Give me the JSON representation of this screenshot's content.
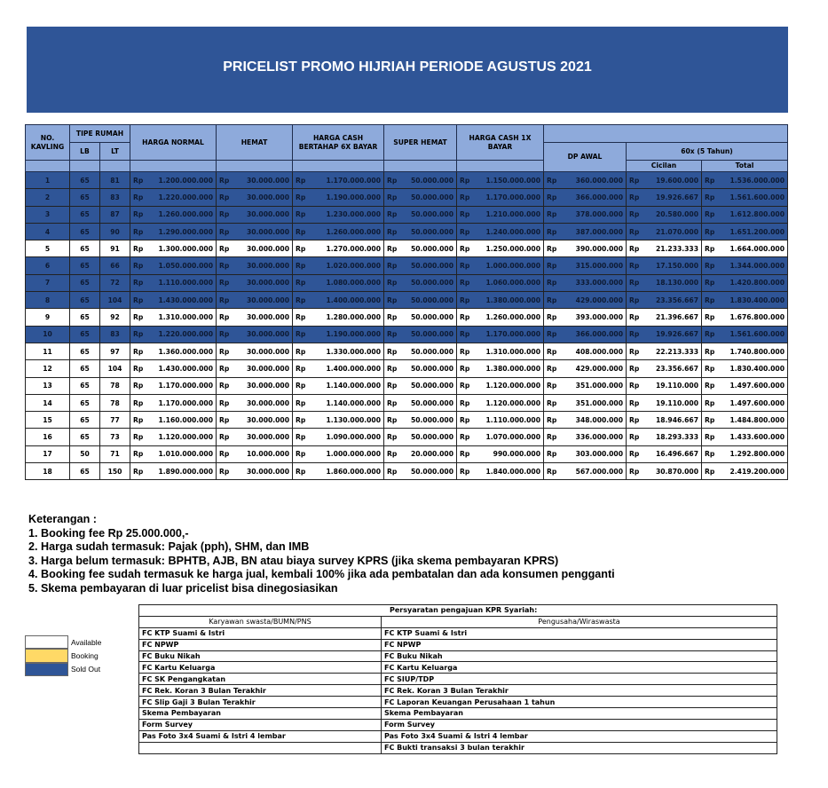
{
  "title": "PRICELIST PROMO HIJRIAH PERIODE AGUSTUS 2021",
  "colors": {
    "header": "#8eaadb",
    "banner": "#2f5597",
    "sold_out": "#2f5597",
    "booking": "#ffd966",
    "available": "#ffffff"
  },
  "table": {
    "headers": {
      "no": "NO. KAVLING",
      "tipe": "TIPE RUMAH",
      "lb": "LB",
      "lt": "LT",
      "harga_normal": "HARGA NORMAL",
      "hemat": "HEMAT",
      "cash6": "HARGA CASH BERTAHAP 6X BAYAR",
      "super_hemat": "SUPER HEMAT",
      "cash1": "HARGA CASH 1X BAYAR",
      "dp": "DP AWAL",
      "tenor": "60x (5 Tahun)",
      "cicilan": "Cicilan",
      "total": "Total"
    },
    "currency": "Rp",
    "rows": [
      {
        "no": "1",
        "lb": "65",
        "lt": "81",
        "normal": "1.200.000.000",
        "hemat": "30.000.000",
        "cash6": "1.170.000.000",
        "super": "50.000.000",
        "cash1": "1.150.000.000",
        "dp": "360.000.000",
        "cicilan": "19.600.000",
        "total": "1.536.000.000",
        "status": "Sold Out"
      },
      {
        "no": "2",
        "lb": "65",
        "lt": "83",
        "normal": "1.220.000.000",
        "hemat": "30.000.000",
        "cash6": "1.190.000.000",
        "super": "50.000.000",
        "cash1": "1.170.000.000",
        "dp": "366.000.000",
        "cicilan": "19.926.667",
        "total": "1.561.600.000",
        "status": "Sold Out"
      },
      {
        "no": "3",
        "lb": "65",
        "lt": "87",
        "normal": "1.260.000.000",
        "hemat": "30.000.000",
        "cash6": "1.230.000.000",
        "super": "50.000.000",
        "cash1": "1.210.000.000",
        "dp": "378.000.000",
        "cicilan": "20.580.000",
        "total": "1.612.800.000",
        "status": "Sold Out"
      },
      {
        "no": "4",
        "lb": "65",
        "lt": "90",
        "normal": "1.290.000.000",
        "hemat": "30.000.000",
        "cash6": "1.260.000.000",
        "super": "50.000.000",
        "cash1": "1.240.000.000",
        "dp": "387.000.000",
        "cicilan": "21.070.000",
        "total": "1.651.200.000",
        "status": "Sold Out"
      },
      {
        "no": "5",
        "lb": "65",
        "lt": "91",
        "normal": "1.300.000.000",
        "hemat": "30.000.000",
        "cash6": "1.270.000.000",
        "super": "50.000.000",
        "cash1": "1.250.000.000",
        "dp": "390.000.000",
        "cicilan": "21.233.333",
        "total": "1.664.000.000",
        "status": "Available"
      },
      {
        "no": "6",
        "lb": "65",
        "lt": "66",
        "normal": "1.050.000.000",
        "hemat": "30.000.000",
        "cash6": "1.020.000.000",
        "super": "50.000.000",
        "cash1": "1.000.000.000",
        "dp": "315.000.000",
        "cicilan": "17.150.000",
        "total": "1.344.000.000",
        "status": "Sold Out"
      },
      {
        "no": "7",
        "lb": "65",
        "lt": "72",
        "normal": "1.110.000.000",
        "hemat": "30.000.000",
        "cash6": "1.080.000.000",
        "super": "50.000.000",
        "cash1": "1.060.000.000",
        "dp": "333.000.000",
        "cicilan": "18.130.000",
        "total": "1.420.800.000",
        "status": "Sold Out"
      },
      {
        "no": "8",
        "lb": "65",
        "lt": "104",
        "normal": "1.430.000.000",
        "hemat": "30.000.000",
        "cash6": "1.400.000.000",
        "super": "50.000.000",
        "cash1": "1.380.000.000",
        "dp": "429.000.000",
        "cicilan": "23.356.667",
        "total": "1.830.400.000",
        "status": "Sold Out"
      },
      {
        "no": "9",
        "lb": "65",
        "lt": "92",
        "normal": "1.310.000.000",
        "hemat": "30.000.000",
        "cash6": "1.280.000.000",
        "super": "50.000.000",
        "cash1": "1.260.000.000",
        "dp": "393.000.000",
        "cicilan": "21.396.667",
        "total": "1.676.800.000",
        "status": "Available"
      },
      {
        "no": "10",
        "lb": "65",
        "lt": "83",
        "normal": "1.220.000.000",
        "hemat": "30.000.000",
        "cash6": "1.190.000.000",
        "super": "50.000.000",
        "cash1": "1.170.000.000",
        "dp": "366.000.000",
        "cicilan": "19.926.667",
        "total": "1.561.600.000",
        "status": "Sold Out"
      },
      {
        "no": "11",
        "lb": "65",
        "lt": "97",
        "normal": "1.360.000.000",
        "hemat": "30.000.000",
        "cash6": "1.330.000.000",
        "super": "50.000.000",
        "cash1": "1.310.000.000",
        "dp": "408.000.000",
        "cicilan": "22.213.333",
        "total": "1.740.800.000",
        "status": "Available"
      },
      {
        "no": "12",
        "lb": "65",
        "lt": "104",
        "normal": "1.430.000.000",
        "hemat": "30.000.000",
        "cash6": "1.400.000.000",
        "super": "50.000.000",
        "cash1": "1.380.000.000",
        "dp": "429.000.000",
        "cicilan": "23.356.667",
        "total": "1.830.400.000",
        "status": "Available"
      },
      {
        "no": "13",
        "lb": "65",
        "lt": "78",
        "normal": "1.170.000.000",
        "hemat": "30.000.000",
        "cash6": "1.140.000.000",
        "super": "50.000.000",
        "cash1": "1.120.000.000",
        "dp": "351.000.000",
        "cicilan": "19.110.000",
        "total": "1.497.600.000",
        "status": "Available"
      },
      {
        "no": "14",
        "lb": "65",
        "lt": "78",
        "normal": "1.170.000.000",
        "hemat": "30.000.000",
        "cash6": "1.140.000.000",
        "super": "50.000.000",
        "cash1": "1.120.000.000",
        "dp": "351.000.000",
        "cicilan": "19.110.000",
        "total": "1.497.600.000",
        "status": "Available"
      },
      {
        "no": "15",
        "lb": "65",
        "lt": "77",
        "normal": "1.160.000.000",
        "hemat": "30.000.000",
        "cash6": "1.130.000.000",
        "super": "50.000.000",
        "cash1": "1.110.000.000",
        "dp": "348.000.000",
        "cicilan": "18.946.667",
        "total": "1.484.800.000",
        "status": "Available"
      },
      {
        "no": "16",
        "lb": "65",
        "lt": "73",
        "normal": "1.120.000.000",
        "hemat": "30.000.000",
        "cash6": "1.090.000.000",
        "super": "50.000.000",
        "cash1": "1.070.000.000",
        "dp": "336.000.000",
        "cicilan": "18.293.333",
        "total": "1.433.600.000",
        "status": "Available"
      },
      {
        "no": "17",
        "lb": "50",
        "lt": "71",
        "normal": "1.010.000.000",
        "hemat": "10.000.000",
        "cash6": "1.000.000.000",
        "super": "20.000.000",
        "cash1": "990.000.000",
        "dp": "303.000.000",
        "cicilan": "16.496.667",
        "total": "1.292.800.000",
        "status": "Available"
      },
      {
        "no": "18",
        "lb": "65",
        "lt": "150",
        "normal": "1.890.000.000",
        "hemat": "30.000.000",
        "cash6": "1.860.000.000",
        "super": "50.000.000",
        "cash1": "1.840.000.000",
        "dp": "567.000.000",
        "cicilan": "30.870.000",
        "total": "2.419.200.000",
        "status": "Available"
      }
    ]
  },
  "notes": {
    "heading": "Keterangan :",
    "items": [
      "1. Booking fee Rp 25.000.000,-",
      "2. Harga sudah termasuk: Pajak (pph), SHM, dan IMB",
      "3. Harga belum termasuk: BPHTB, AJB, BN atau biaya survey KPRS (jika skema pembayaran KPRS)",
      "4. Booking fee sudah termasuk ke harga jual, kembali 100% jika ada pembatalan dan ada konsumen pengganti",
      "5. Skema pembayaran di luar pricelist bisa dinegosiasikan"
    ]
  },
  "legend": [
    {
      "label": "Available",
      "color": "#ffffff"
    },
    {
      "label": "Booking",
      "color": "#ffd966"
    },
    {
      "label": "Sold Out",
      "color": "#2f5597"
    }
  ],
  "requirements": {
    "title": "Persyaratan pengajuan KPR Syariah:",
    "col1": "Karyawan swasta/BUMN/PNS",
    "col2": "Pengusaha/Wiraswasta",
    "rows": [
      [
        "FC KTP Suami & Istri",
        "FC KTP Suami & Istri"
      ],
      [
        "FC NPWP",
        "FC NPWP"
      ],
      [
        "FC Buku Nikah",
        "FC Buku Nikah"
      ],
      [
        "FC Kartu Keluarga",
        "FC Kartu Keluarga"
      ],
      [
        "FC SK Pengangkatan",
        "FC SIUP/TDP"
      ],
      [
        "FC Rek. Koran 3 Bulan Terakhir",
        "FC Rek. Koran 3 Bulan Terakhir"
      ],
      [
        "FC Slip Gaji 3 Bulan Terakhir",
        "FC Laporan Keuangan Perusahaan 1 tahun"
      ],
      [
        "Skema Pembayaran",
        "Skema Pembayaran"
      ],
      [
        "Form Survey",
        "Form Survey"
      ],
      [
        "Pas Foto 3x4 Suami & Istri 4 lembar",
        "Pas Foto 3x4 Suami & Istri 4 lembar"
      ],
      [
        "",
        "FC Bukti transaksi 3 bulan terakhir"
      ]
    ]
  }
}
